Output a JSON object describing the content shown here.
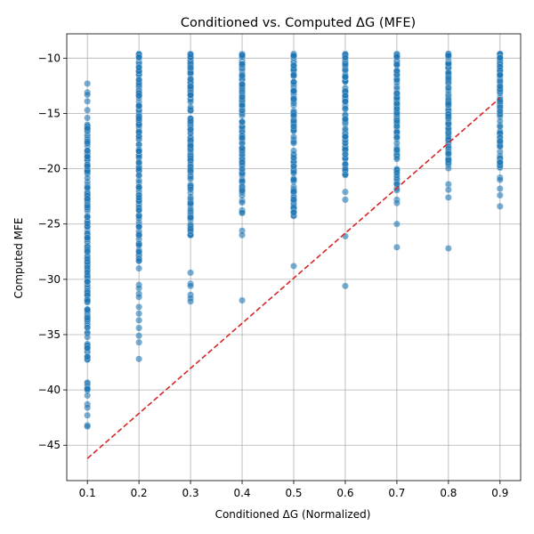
{
  "chart_data": {
    "type": "scatter",
    "title": "Conditioned vs. Computed ΔG (MFE)",
    "xlabel": "Conditioned ΔG (Normalized)",
    "ylabel": "Computed MFE",
    "xlim": [
      0.06,
      0.94
    ],
    "ylim": [
      -48.2,
      -7.8
    ],
    "xticks": [
      0.1,
      0.2,
      0.3,
      0.4,
      0.5,
      0.6,
      0.7,
      0.8,
      0.9
    ],
    "xtick_labels": [
      "0.1",
      "0.2",
      "0.3",
      "0.4",
      "0.5",
      "0.6",
      "0.7",
      "0.8",
      "0.9"
    ],
    "yticks": [
      -10,
      -15,
      -20,
      -25,
      -30,
      -35,
      -40,
      -45
    ],
    "ytick_labels": [
      "−10",
      "−15",
      "−20",
      "−25",
      "−30",
      "−35",
      "−40",
      "−45"
    ],
    "grid": true,
    "point_color": "#1f77b4",
    "point_alpha": 0.6,
    "line_color": "#d62728",
    "series": [
      {
        "kind": "points",
        "x": [
          0.1,
          0.2,
          0.3,
          0.4,
          0.5,
          0.6,
          0.7,
          0.8,
          0.9
        ],
        "y_ranges": [
          [
            -40.3,
            -16.0
          ],
          [
            -29.2,
            -9.6
          ],
          [
            -26.2,
            -9.6
          ],
          [
            -24.3,
            -9.6
          ],
          [
            -24.3,
            -9.6
          ],
          [
            -20.9,
            -9.6
          ],
          [
            -22.0,
            -9.6
          ],
          [
            -20.5,
            -9.6
          ],
          [
            -20.0,
            -9.6
          ]
        ],
        "outliers": [
          [
            -12.3,
            -13.1,
            -13.3,
            -13.9,
            -14.7,
            -15.4,
            -40.5,
            -41.3,
            -41.6,
            -42.3,
            -43.2,
            -43.3
          ],
          [
            -30.5,
            -30.8,
            -31.3,
            -31.6,
            -32.5,
            -33.1,
            -33.7,
            -34.4,
            -35.1,
            -35.7,
            -37.2
          ],
          [
            -29.4,
            -30.4,
            -30.6,
            -31.4,
            -31.7,
            -32.0
          ],
          [
            -25.6,
            -26.0,
            -31.9
          ],
          [
            -28.8
          ],
          [
            -22.1,
            -22.8,
            -26.1,
            -30.6
          ],
          [
            -22.8,
            -23.1,
            -25.0,
            -27.1
          ],
          [
            -21.4,
            -21.9,
            -22.6,
            -27.2
          ],
          [
            -20.8,
            -21.0,
            -21.8,
            -22.4,
            -23.4
          ]
        ]
      },
      {
        "kind": "line",
        "style": "dashed",
        "x": [
          0.1,
          0.9
        ],
        "y": [
          -46.2,
          -13.6
        ]
      }
    ]
  }
}
